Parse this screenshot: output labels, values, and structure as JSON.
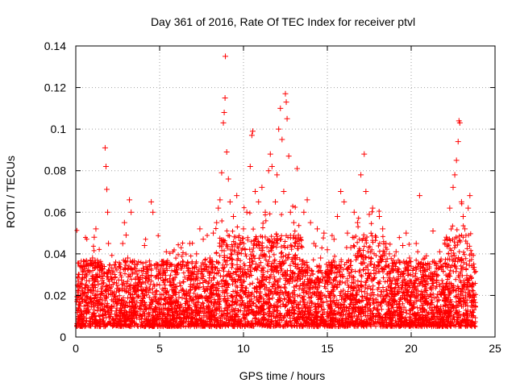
{
  "chart_data": {
    "type": "scatter",
    "title": "Day 361 of 2016, Rate Of TEC Index for receiver ptvl",
    "xlabel": "GPS time / hours",
    "ylabel": "ROTI / TECUs",
    "xlim": [
      0,
      25
    ],
    "ylim": [
      0,
      0.14
    ],
    "xticks": [
      0,
      5,
      10,
      15,
      20,
      25
    ],
    "xtick_labels": [
      "0",
      "5",
      "10",
      "15",
      "20",
      "25"
    ],
    "yticks": [
      0,
      0.02,
      0.04,
      0.06,
      0.08,
      0.1,
      0.12,
      0.14
    ],
    "ytick_labels": [
      "0",
      "0.02",
      "0.04",
      "0.06",
      "0.08",
      "0.1",
      "0.12",
      "0.14"
    ],
    "grid": true,
    "marker": "+",
    "color": "#ff0000",
    "series": [
      {
        "name": "ROTI",
        "points": [
          [
            0.1,
            0.018
          ],
          [
            0.2,
            0.024
          ],
          [
            0.3,
            0.012
          ],
          [
            0.4,
            0.03
          ],
          [
            0.5,
            0.021
          ],
          [
            0.6,
            0.035
          ],
          [
            0.7,
            0.015
          ],
          [
            0.8,
            0.027
          ],
          [
            0.9,
            0.019
          ],
          [
            1.0,
            0.038
          ],
          [
            1.1,
            0.048
          ],
          [
            1.2,
            0.052
          ],
          [
            1.3,
            0.022
          ],
          [
            1.4,
            0.016
          ],
          [
            1.5,
            0.029
          ],
          [
            1.6,
            0.033
          ],
          [
            1.75,
            0.091
          ],
          [
            1.8,
            0.082
          ],
          [
            1.85,
            0.071
          ],
          [
            1.9,
            0.06
          ],
          [
            1.95,
            0.045
          ],
          [
            2.0,
            0.025
          ],
          [
            2.2,
            0.031
          ],
          [
            2.4,
            0.018
          ],
          [
            2.6,
            0.034
          ],
          [
            2.8,
            0.045
          ],
          [
            2.9,
            0.055
          ],
          [
            3.0,
            0.049
          ],
          [
            3.1,
            0.038
          ],
          [
            3.2,
            0.066
          ],
          [
            3.3,
            0.06
          ],
          [
            3.5,
            0.022
          ],
          [
            3.7,
            0.029
          ],
          [
            3.9,
            0.032
          ],
          [
            4.1,
            0.044
          ],
          [
            4.3,
            0.027
          ],
          [
            4.5,
            0.065
          ],
          [
            4.6,
            0.06
          ],
          [
            4.8,
            0.035
          ],
          [
            5.0,
            0.025
          ],
          [
            5.2,
            0.033
          ],
          [
            5.4,
            0.041
          ],
          [
            5.6,
            0.028
          ],
          [
            5.8,
            0.02
          ],
          [
            6.0,
            0.03
          ],
          [
            6.2,
            0.026
          ],
          [
            6.4,
            0.036
          ],
          [
            6.6,
            0.022
          ],
          [
            6.8,
            0.045
          ],
          [
            7.0,
            0.03
          ],
          [
            7.2,
            0.04
          ],
          [
            7.4,
            0.052
          ],
          [
            7.6,
            0.047
          ],
          [
            7.8,
            0.034
          ],
          [
            8.0,
            0.038
          ],
          [
            8.2,
            0.05
          ],
          [
            8.4,
            0.055
          ],
          [
            8.5,
            0.062
          ],
          [
            8.6,
            0.066
          ],
          [
            8.7,
            0.079
          ],
          [
            8.8,
            0.103
          ],
          [
            8.85,
            0.108
          ],
          [
            8.9,
            0.115
          ],
          [
            8.92,
            0.135
          ],
          [
            9.0,
            0.089
          ],
          [
            9.1,
            0.076
          ],
          [
            9.2,
            0.065
          ],
          [
            9.4,
            0.058
          ],
          [
            9.6,
            0.068
          ],
          [
            9.8,
            0.045
          ],
          [
            10.0,
            0.052
          ],
          [
            10.2,
            0.06
          ],
          [
            10.4,
            0.082
          ],
          [
            10.5,
            0.097
          ],
          [
            10.55,
            0.099
          ],
          [
            10.7,
            0.07
          ],
          [
            10.9,
            0.065
          ],
          [
            11.1,
            0.072
          ],
          [
            11.3,
            0.06
          ],
          [
            11.5,
            0.08
          ],
          [
            11.6,
            0.088
          ],
          [
            11.7,
            0.082
          ],
          [
            11.9,
            0.065
          ],
          [
            12.0,
            0.078
          ],
          [
            12.1,
            0.1
          ],
          [
            12.2,
            0.11
          ],
          [
            12.3,
            0.095
          ],
          [
            12.4,
            0.07
          ],
          [
            12.5,
            0.117
          ],
          [
            12.55,
            0.113
          ],
          [
            12.6,
            0.105
          ],
          [
            12.7,
            0.087
          ],
          [
            12.8,
            0.06
          ],
          [
            13.0,
            0.055
          ],
          [
            13.2,
            0.081
          ],
          [
            13.4,
            0.048
          ],
          [
            13.6,
            0.06
          ],
          [
            13.8,
            0.066
          ],
          [
            14.0,
            0.055
          ],
          [
            14.2,
            0.045
          ],
          [
            14.4,
            0.052
          ],
          [
            14.6,
            0.038
          ],
          [
            14.8,
            0.05
          ],
          [
            15.0,
            0.042
          ],
          [
            15.2,
            0.035
          ],
          [
            15.4,
            0.047
          ],
          [
            15.6,
            0.058
          ],
          [
            15.8,
            0.07
          ],
          [
            16.0,
            0.065
          ],
          [
            16.2,
            0.05
          ],
          [
            16.4,
            0.043
          ],
          [
            16.6,
            0.06
          ],
          [
            16.8,
            0.055
          ],
          [
            17.0,
            0.078
          ],
          [
            17.2,
            0.088
          ],
          [
            17.3,
            0.07
          ],
          [
            17.5,
            0.059
          ],
          [
            17.7,
            0.062
          ],
          [
            17.9,
            0.048
          ],
          [
            18.1,
            0.058
          ],
          [
            18.3,
            0.052
          ],
          [
            18.5,
            0.045
          ],
          [
            18.7,
            0.04
          ],
          [
            18.9,
            0.033
          ],
          [
            19.1,
            0.041
          ],
          [
            19.3,
            0.036
          ],
          [
            19.5,
            0.044
          ],
          [
            19.7,
            0.05
          ],
          [
            19.9,
            0.038
          ],
          [
            20.1,
            0.032
          ],
          [
            20.3,
            0.045
          ],
          [
            20.5,
            0.068
          ],
          [
            20.7,
            0.03
          ],
          [
            20.9,
            0.039
          ],
          [
            21.1,
            0.035
          ],
          [
            21.3,
            0.051
          ],
          [
            21.5,
            0.027
          ],
          [
            21.7,
            0.041
          ],
          [
            21.9,
            0.034
          ],
          [
            22.1,
            0.048
          ],
          [
            22.3,
            0.062
          ],
          [
            22.5,
            0.072
          ],
          [
            22.6,
            0.078
          ],
          [
            22.7,
            0.085
          ],
          [
            22.8,
            0.094
          ],
          [
            22.85,
            0.104
          ],
          [
            22.9,
            0.103
          ],
          [
            23.0,
            0.065
          ],
          [
            23.1,
            0.058
          ],
          [
            23.2,
            0.052
          ],
          [
            23.4,
            0.062
          ],
          [
            23.5,
            0.068
          ],
          [
            23.6,
            0.04
          ],
          [
            23.7,
            0.025
          ]
        ]
      }
    ]
  }
}
